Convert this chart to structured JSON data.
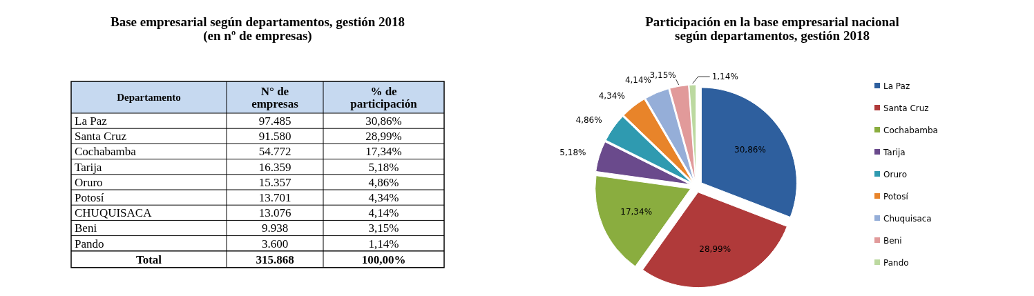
{
  "chart_data": [
    {
      "type": "other",
      "title": "Base empresarial según departamentos, gestión 2018 (en nº de empresas)",
      "xlabel": "Departamento",
      "categories": [
        "La Paz",
        "Santa Cruz",
        "Cochabamba",
        "Tarija",
        "Oruro",
        "Potosí",
        "CHUQUISACA",
        "Beni",
        "Pando"
      ],
      "series": [
        {
          "name": "N° de empresas",
          "values": [
            97485,
            91580,
            54772,
            16359,
            15357,
            13701,
            13076,
            9938,
            3600
          ],
          "value_labels": [
            "97.485",
            "91.580",
            "54.772",
            "16.359",
            "15.357",
            "13.701",
            "13.076",
            "9.938",
            "3.600"
          ]
        },
        {
          "name": "% de participación",
          "values": [
            30.86,
            28.99,
            17.34,
            5.18,
            4.86,
            4.34,
            4.14,
            3.15,
            1.14
          ],
          "value_labels": [
            "30,86%",
            "28,99%",
            "17,34%",
            "5,18%",
            "4,86%",
            "4,34%",
            "4,14%",
            "3,15%",
            "1,14%"
          ]
        }
      ],
      "annotations": [
        "Total",
        "315.868",
        "100,00%"
      ]
    },
    {
      "type": "pie",
      "title": "Participación en la base empresarial nacional según departamentos, gestión 2018",
      "categories": [
        "La Paz",
        "Santa Cruz",
        "Cochabamba",
        "Tarija",
        "Oruro",
        "Potosí",
        "Chuquisaca",
        "Beni",
        "Pando"
      ],
      "values": [
        30.86,
        28.99,
        17.34,
        5.18,
        4.86,
        4.34,
        4.14,
        3.15,
        1.14
      ],
      "value_labels": [
        "30,86%",
        "28,99%",
        "17,34%",
        "5,18%",
        "4,86%",
        "4,34%",
        "4,14%",
        "3,15%",
        "1,14%"
      ],
      "colors": [
        "#2e5f9e",
        "#b03a3a",
        "#8aad3f",
        "#6a4a8c",
        "#2f9ab0",
        "#e8842a",
        "#95aed8",
        "#e19a9a",
        "#bcd9a0"
      ],
      "legend": "right"
    }
  ]
}
